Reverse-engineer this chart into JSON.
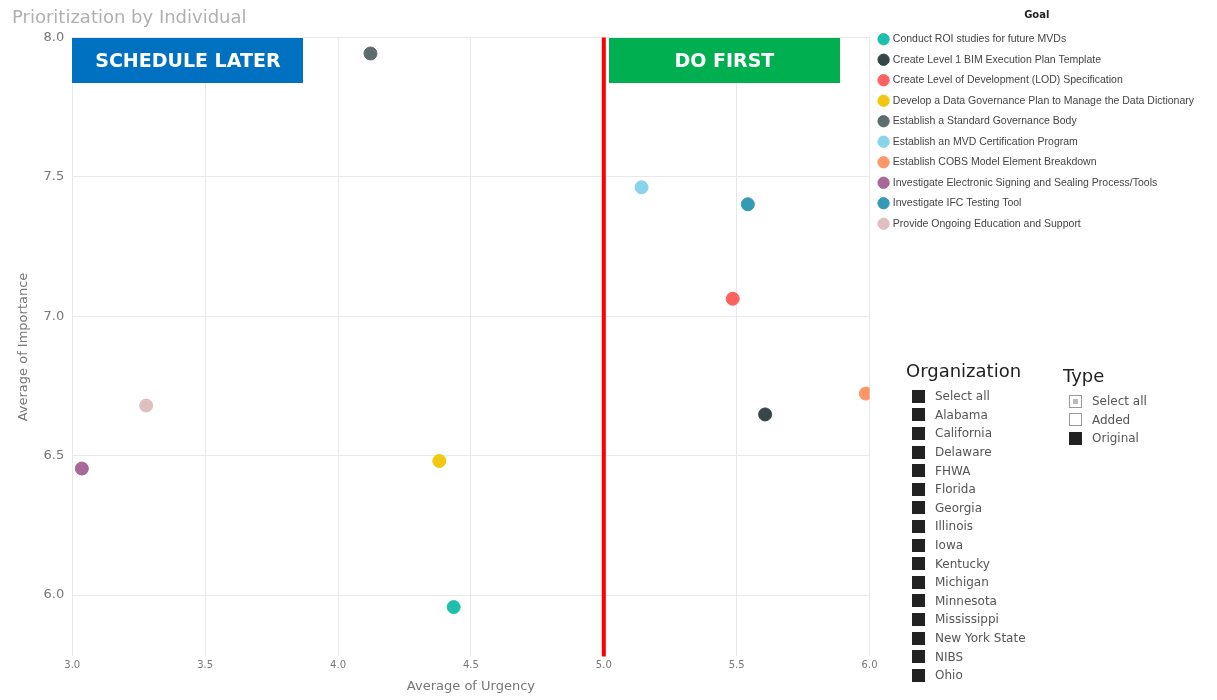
{
  "chart_data": [
    {
      "type": "scatter",
      "title": "Prioritization by Individual",
      "xlabel": "Average of Urgency",
      "ylabel": "Average of Importance",
      "legend_title": "Goal",
      "legend": "right",
      "grid": true,
      "marker": "circle",
      "xlim": [
        3,
        6
      ],
      "xticks": [
        {
          "value": 3,
          "label": "3.0"
        },
        {
          "value": 3.5,
          "label": "3.5"
        },
        {
          "value": 4,
          "label": "4.0"
        },
        {
          "value": 4.5,
          "label": "4.5"
        },
        {
          "value": 5,
          "label": "5.0"
        },
        {
          "value": 5.5,
          "label": "5.5"
        },
        {
          "value": 6,
          "label": "6.0"
        }
      ],
      "ylim": [
        5.78,
        8
      ],
      "yticks": [
        {
          "value": 6,
          "label": "6.0"
        },
        {
          "value": 6.5,
          "label": "6.5"
        },
        {
          "value": 7,
          "label": "7.0"
        },
        {
          "value": 7.5,
          "label": "7.5"
        },
        {
          "value": 8,
          "label": "8.0"
        }
      ],
      "ref_lines": [
        {
          "axis": "x",
          "value": 5,
          "color": "#ff0000"
        }
      ],
      "annotations": [
        "SCHEDULE LATER",
        "DO FIRST"
      ],
      "series": [
        {
          "name": "Conduct ROI studies for future MVDs",
          "color": "#1fbfad",
          "x": [
            4.435
          ],
          "values": [
            5.957
          ]
        },
        {
          "name": "Create Level 1 BIM Execution Plan Template",
          "color": "#374649",
          "x": [
            5.607
          ],
          "values": [
            6.648
          ]
        },
        {
          "name": "Create Level of Development (LOD) Specification",
          "color": "#fd625e",
          "x": [
            5.485
          ],
          "values": [
            7.063
          ]
        },
        {
          "name": "Develop a Data Governance Plan to Manage the Data Dictionary",
          "color": "#f2c80f",
          "x": [
            4.381
          ],
          "values": [
            6.481
          ]
        },
        {
          "name": "Establish a Standard Governance Body",
          "color": "#5f6b6d",
          "x": [
            4.122
          ],
          "values": [
            7.943
          ]
        },
        {
          "name": "Establish an MVD Certification Program",
          "color": "#8ad4eb",
          "x": [
            5.142
          ],
          "values": [
            7.463
          ]
        },
        {
          "name": "Establish COBS Model Element Breakdown",
          "color": "#fe9666",
          "x": [
            5.986
          ],
          "values": [
            6.723
          ]
        },
        {
          "name": "Investigate Electronic Signing and Sealing Process/Tools",
          "color": "#a66999",
          "x": [
            3.036
          ],
          "values": [
            6.454
          ]
        },
        {
          "name": "Investigate IFC Testing Tool",
          "color": "#3599b8",
          "x": [
            5.542
          ],
          "values": [
            7.402
          ]
        },
        {
          "name": "Provide Ongoing Education and Support",
          "color": "#dfbfbf",
          "x": [
            3.278
          ],
          "values": [
            6.68
          ]
        }
      ]
    },
    {
      "type": "other",
      "title": "Organization",
      "annotations": [
        "Select all",
        "Alabama",
        "California",
        "Delaware",
        "FHWA",
        "Florida",
        "Georgia",
        "Illinois",
        "Iowa",
        "Kentucky",
        "Michigan",
        "Minnesota",
        "Mississippi",
        "New York State",
        "NIBS",
        "Ohio"
      ]
    },
    {
      "type": "other",
      "title": "Type",
      "annotations": [
        "Select all",
        "Added",
        "Original"
      ]
    }
  ]
}
